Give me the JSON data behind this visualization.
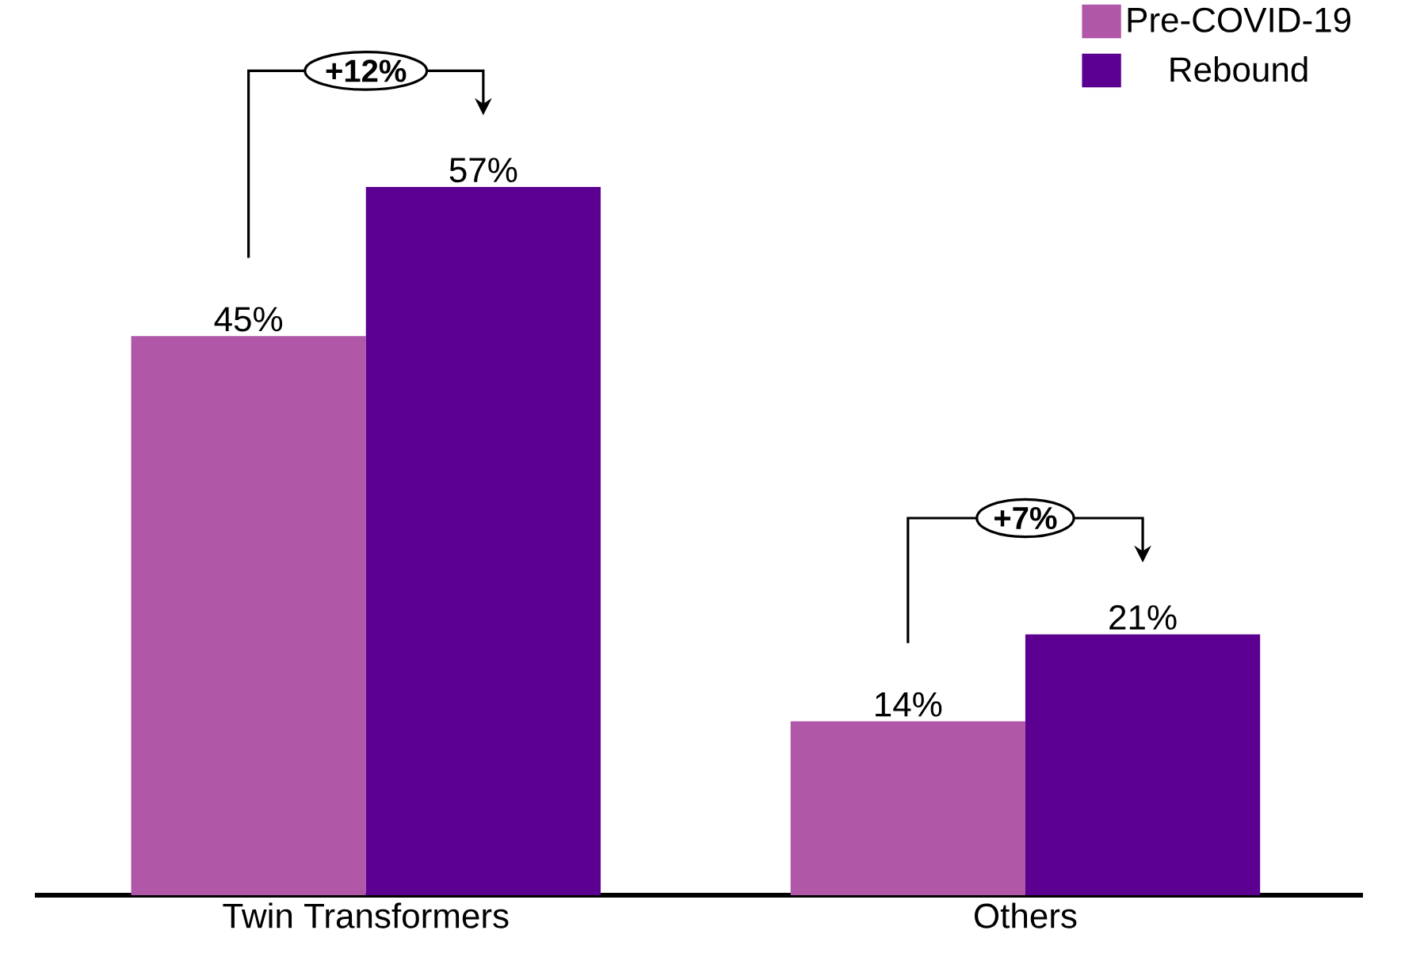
{
  "chart_data": {
    "type": "bar",
    "categories": [
      "Twin Transformers",
      "Others"
    ],
    "series": [
      {
        "name": "Pre-COVID-19",
        "color": "#b157a8",
        "values": [
          45,
          14
        ],
        "value_labels": [
          "45%",
          "14%"
        ]
      },
      {
        "name": "Rebound",
        "color": "#5c0091",
        "values": [
          57,
          21
        ],
        "value_labels": [
          "57%",
          "21%"
        ]
      }
    ],
    "annotations": [
      "+12%",
      "+7%"
    ],
    "legend": "top right"
  }
}
